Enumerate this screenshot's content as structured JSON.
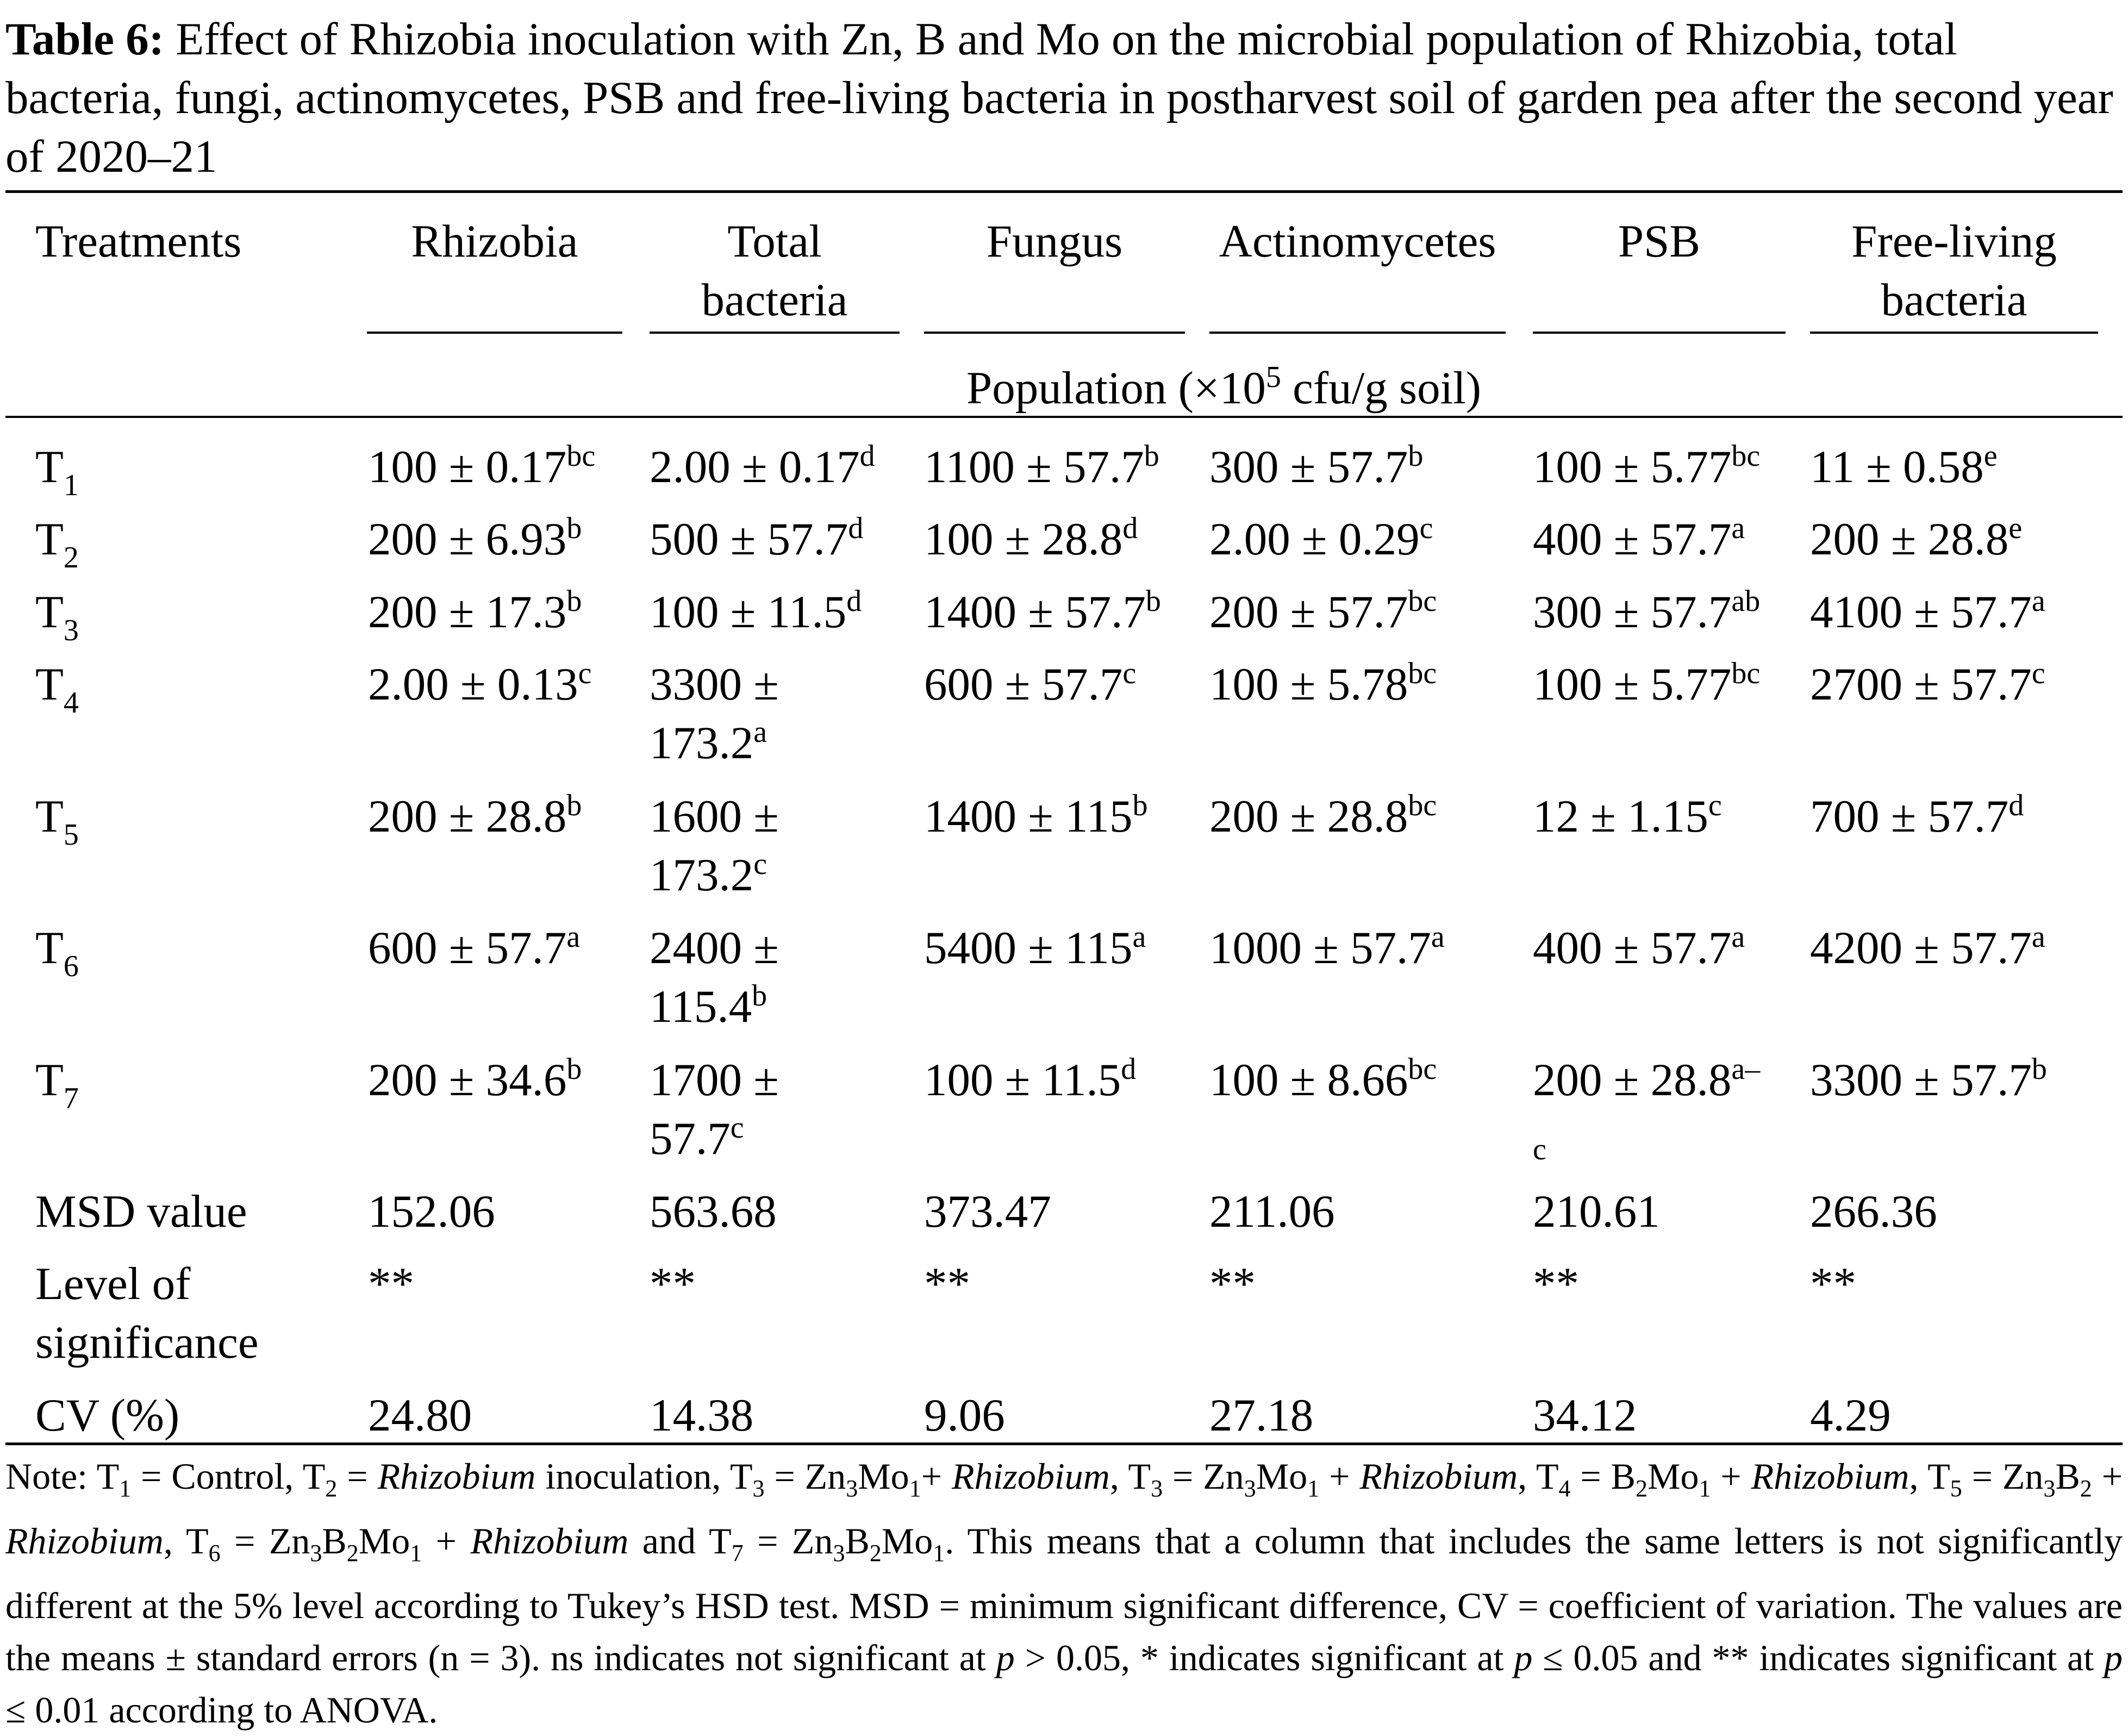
{
  "caption": {
    "label": "Table 6:",
    "text": "Effect of Rhizobia inoculation with Zn, B and Mo on the microbial population of Rhizobia, total bacteria, fungi, actinomycetes, PSB and free-living bacteria in postharvest soil of garden pea after the second year of 2020–21"
  },
  "table": {
    "headers": [
      "Treatments",
      "Rhizobia",
      "Total bacteria",
      "Fungus",
      "Actinomycetes",
      "PSB",
      "Free-living bacteria"
    ],
    "unit_row": {
      "text": "Population (×10",
      "exp": "5",
      "tail": " cfu/g soil)"
    },
    "rows": [
      {
        "label": "T",
        "sub": "1",
        "cells": [
          {
            "v": "100 ± 0.17",
            "s": "bc"
          },
          {
            "v": "2.00 ± 0.17",
            "s": "d"
          },
          {
            "v": "1100 ± 57.7",
            "s": "b"
          },
          {
            "v": "300 ± 57.7",
            "s": "b"
          },
          {
            "v": "100 ± 5.77",
            "s": "bc"
          },
          {
            "v": "11 ± 0.58",
            "s": "e"
          }
        ]
      },
      {
        "label": "T",
        "sub": "2",
        "cells": [
          {
            "v": "200 ± 6.93",
            "s": "b"
          },
          {
            "v": "500 ± 57.7",
            "s": "d"
          },
          {
            "v": "100 ± 28.8",
            "s": "d"
          },
          {
            "v": "2.00 ± 0.29",
            "s": "c"
          },
          {
            "v": "400 ± 57.7",
            "s": "a"
          },
          {
            "v": "200 ± 28.8",
            "s": "e"
          }
        ]
      },
      {
        "label": "T",
        "sub": "3",
        "cells": [
          {
            "v": "200 ± 17.3",
            "s": "b"
          },
          {
            "v": "100 ± 11.5",
            "s": "d"
          },
          {
            "v": "1400 ± 57.7",
            "s": "b"
          },
          {
            "v": "200 ± 57.7",
            "s": "bc"
          },
          {
            "v": "300 ± 57.7",
            "s": "ab"
          },
          {
            "v": "4100 ± 57.7",
            "s": "a"
          }
        ]
      },
      {
        "label": "T",
        "sub": "4",
        "cells": [
          {
            "v": "2.00 ± 0.13",
            "s": "c"
          },
          {
            "v": "3300 ±",
            "v2": "173.2",
            "s": "a"
          },
          {
            "v": "600 ± 57.7",
            "s": "c"
          },
          {
            "v": "100 ± 5.78",
            "s": "bc"
          },
          {
            "v": "100 ± 5.77",
            "s": "bc"
          },
          {
            "v": "2700 ± 57.7",
            "s": "c"
          }
        ]
      },
      {
        "label": "T",
        "sub": "5",
        "cells": [
          {
            "v": "200 ± 28.8",
            "s": "b"
          },
          {
            "v": "1600 ±",
            "v2": "173.2",
            "s": "c"
          },
          {
            "v": "1400 ± 115",
            "s": "b"
          },
          {
            "v": "200 ± 28.8",
            "s": "bc"
          },
          {
            "v": "12 ± 1.15",
            "s": "c"
          },
          {
            "v": "700 ± 57.7",
            "s": "d"
          }
        ]
      },
      {
        "label": "T",
        "sub": "6",
        "cells": [
          {
            "v": "600 ± 57.7",
            "s": "a"
          },
          {
            "v": "2400 ±",
            "v2": "115.4",
            "s": "b"
          },
          {
            "v": "5400 ± 115",
            "s": "a"
          },
          {
            "v": "1000 ± 57.7",
            "s": "a"
          },
          {
            "v": "400 ± 57.7",
            "s": "a"
          },
          {
            "v": "4200 ± 57.7",
            "s": "a"
          }
        ]
      },
      {
        "label": "T",
        "sub": "7",
        "cells": [
          {
            "v": "200 ± 34.6",
            "s": "b"
          },
          {
            "v": "1700 ±",
            "v2": "57.7",
            "s": "c"
          },
          {
            "v": "100 ± 11.5",
            "s": "d"
          },
          {
            "v": "100 ± 8.66",
            "s": "bc"
          },
          {
            "v": "200 ± 28.8",
            "s": "a–",
            "s2": "c"
          },
          {
            "v": "3300 ± 57.7",
            "s": "b"
          }
        ]
      }
    ],
    "msd": {
      "label": "MSD value",
      "values": [
        "152.06",
        "563.68",
        "373.47",
        "211.06",
        "210.61",
        "266.36"
      ]
    },
    "significance": {
      "label_1": "Level of",
      "label_2": "significance",
      "values": [
        "**",
        "**",
        "**",
        "**",
        "**",
        "**"
      ]
    },
    "cv": {
      "label": "CV (%)",
      "values": [
        "24.80",
        "14.38",
        "9.06",
        "27.18",
        "34.12",
        "4.29"
      ]
    }
  },
  "note": {
    "segments": [
      {
        "t": "Note: T"
      },
      {
        "sub": "1"
      },
      {
        "t": " = Control, T"
      },
      {
        "sub": "2"
      },
      {
        "t": " = "
      },
      {
        "i": "Rhizobium"
      },
      {
        "t": " inoculation, T"
      },
      {
        "sub": "3"
      },
      {
        "t": " = Zn"
      },
      {
        "sub": "3"
      },
      {
        "t": "Mo"
      },
      {
        "sub": "1"
      },
      {
        "t": "+ "
      },
      {
        "i": "Rhizobium"
      },
      {
        "t": ", T"
      },
      {
        "sub": "3"
      },
      {
        "t": " = Zn"
      },
      {
        "sub": "3"
      },
      {
        "t": "Mo"
      },
      {
        "sub": "1"
      },
      {
        "t": " + "
      },
      {
        "i": "Rhizobium"
      },
      {
        "t": ", T"
      },
      {
        "sub": "4"
      },
      {
        "t": " = B"
      },
      {
        "sub": "2"
      },
      {
        "t": "Mo"
      },
      {
        "sub": "1"
      },
      {
        "t": " + "
      },
      {
        "i": "Rhizobium"
      },
      {
        "t": ", T"
      },
      {
        "sub": "5"
      },
      {
        "t": " = Zn"
      },
      {
        "sub": "3"
      },
      {
        "t": "B"
      },
      {
        "sub": "2"
      },
      {
        "t": " + "
      },
      {
        "i": "Rhizobium"
      },
      {
        "t": ", T"
      },
      {
        "sub": "6"
      },
      {
        "t": " = Zn"
      },
      {
        "sub": "3"
      },
      {
        "t": "B"
      },
      {
        "sub": "2"
      },
      {
        "t": "Mo"
      },
      {
        "sub": "1"
      },
      {
        "t": " + "
      },
      {
        "i": "Rhizobium"
      },
      {
        "t": " and T"
      },
      {
        "sub": "7"
      },
      {
        "t": " = Zn"
      },
      {
        "sub": "3"
      },
      {
        "t": "B"
      },
      {
        "sub": "2"
      },
      {
        "t": "Mo"
      },
      {
        "sub": "1"
      },
      {
        "t": ". This means that a column that includes the same letters is not significantly different at the 5% level according to Tukey’s HSD test. MSD = minimum significant difference, CV = coefficient of variation. The values are the means ± standard errors (n = 3). ns indicates not significant at "
      },
      {
        "i": "p"
      },
      {
        "t": " > 0.05, * indicates significant at "
      },
      {
        "i": "p"
      },
      {
        "t": " ≤ 0.05 and ** indicates significant at "
      },
      {
        "i": "p"
      },
      {
        "t": " ≤ 0.01 according to ANOVA."
      }
    ]
  }
}
